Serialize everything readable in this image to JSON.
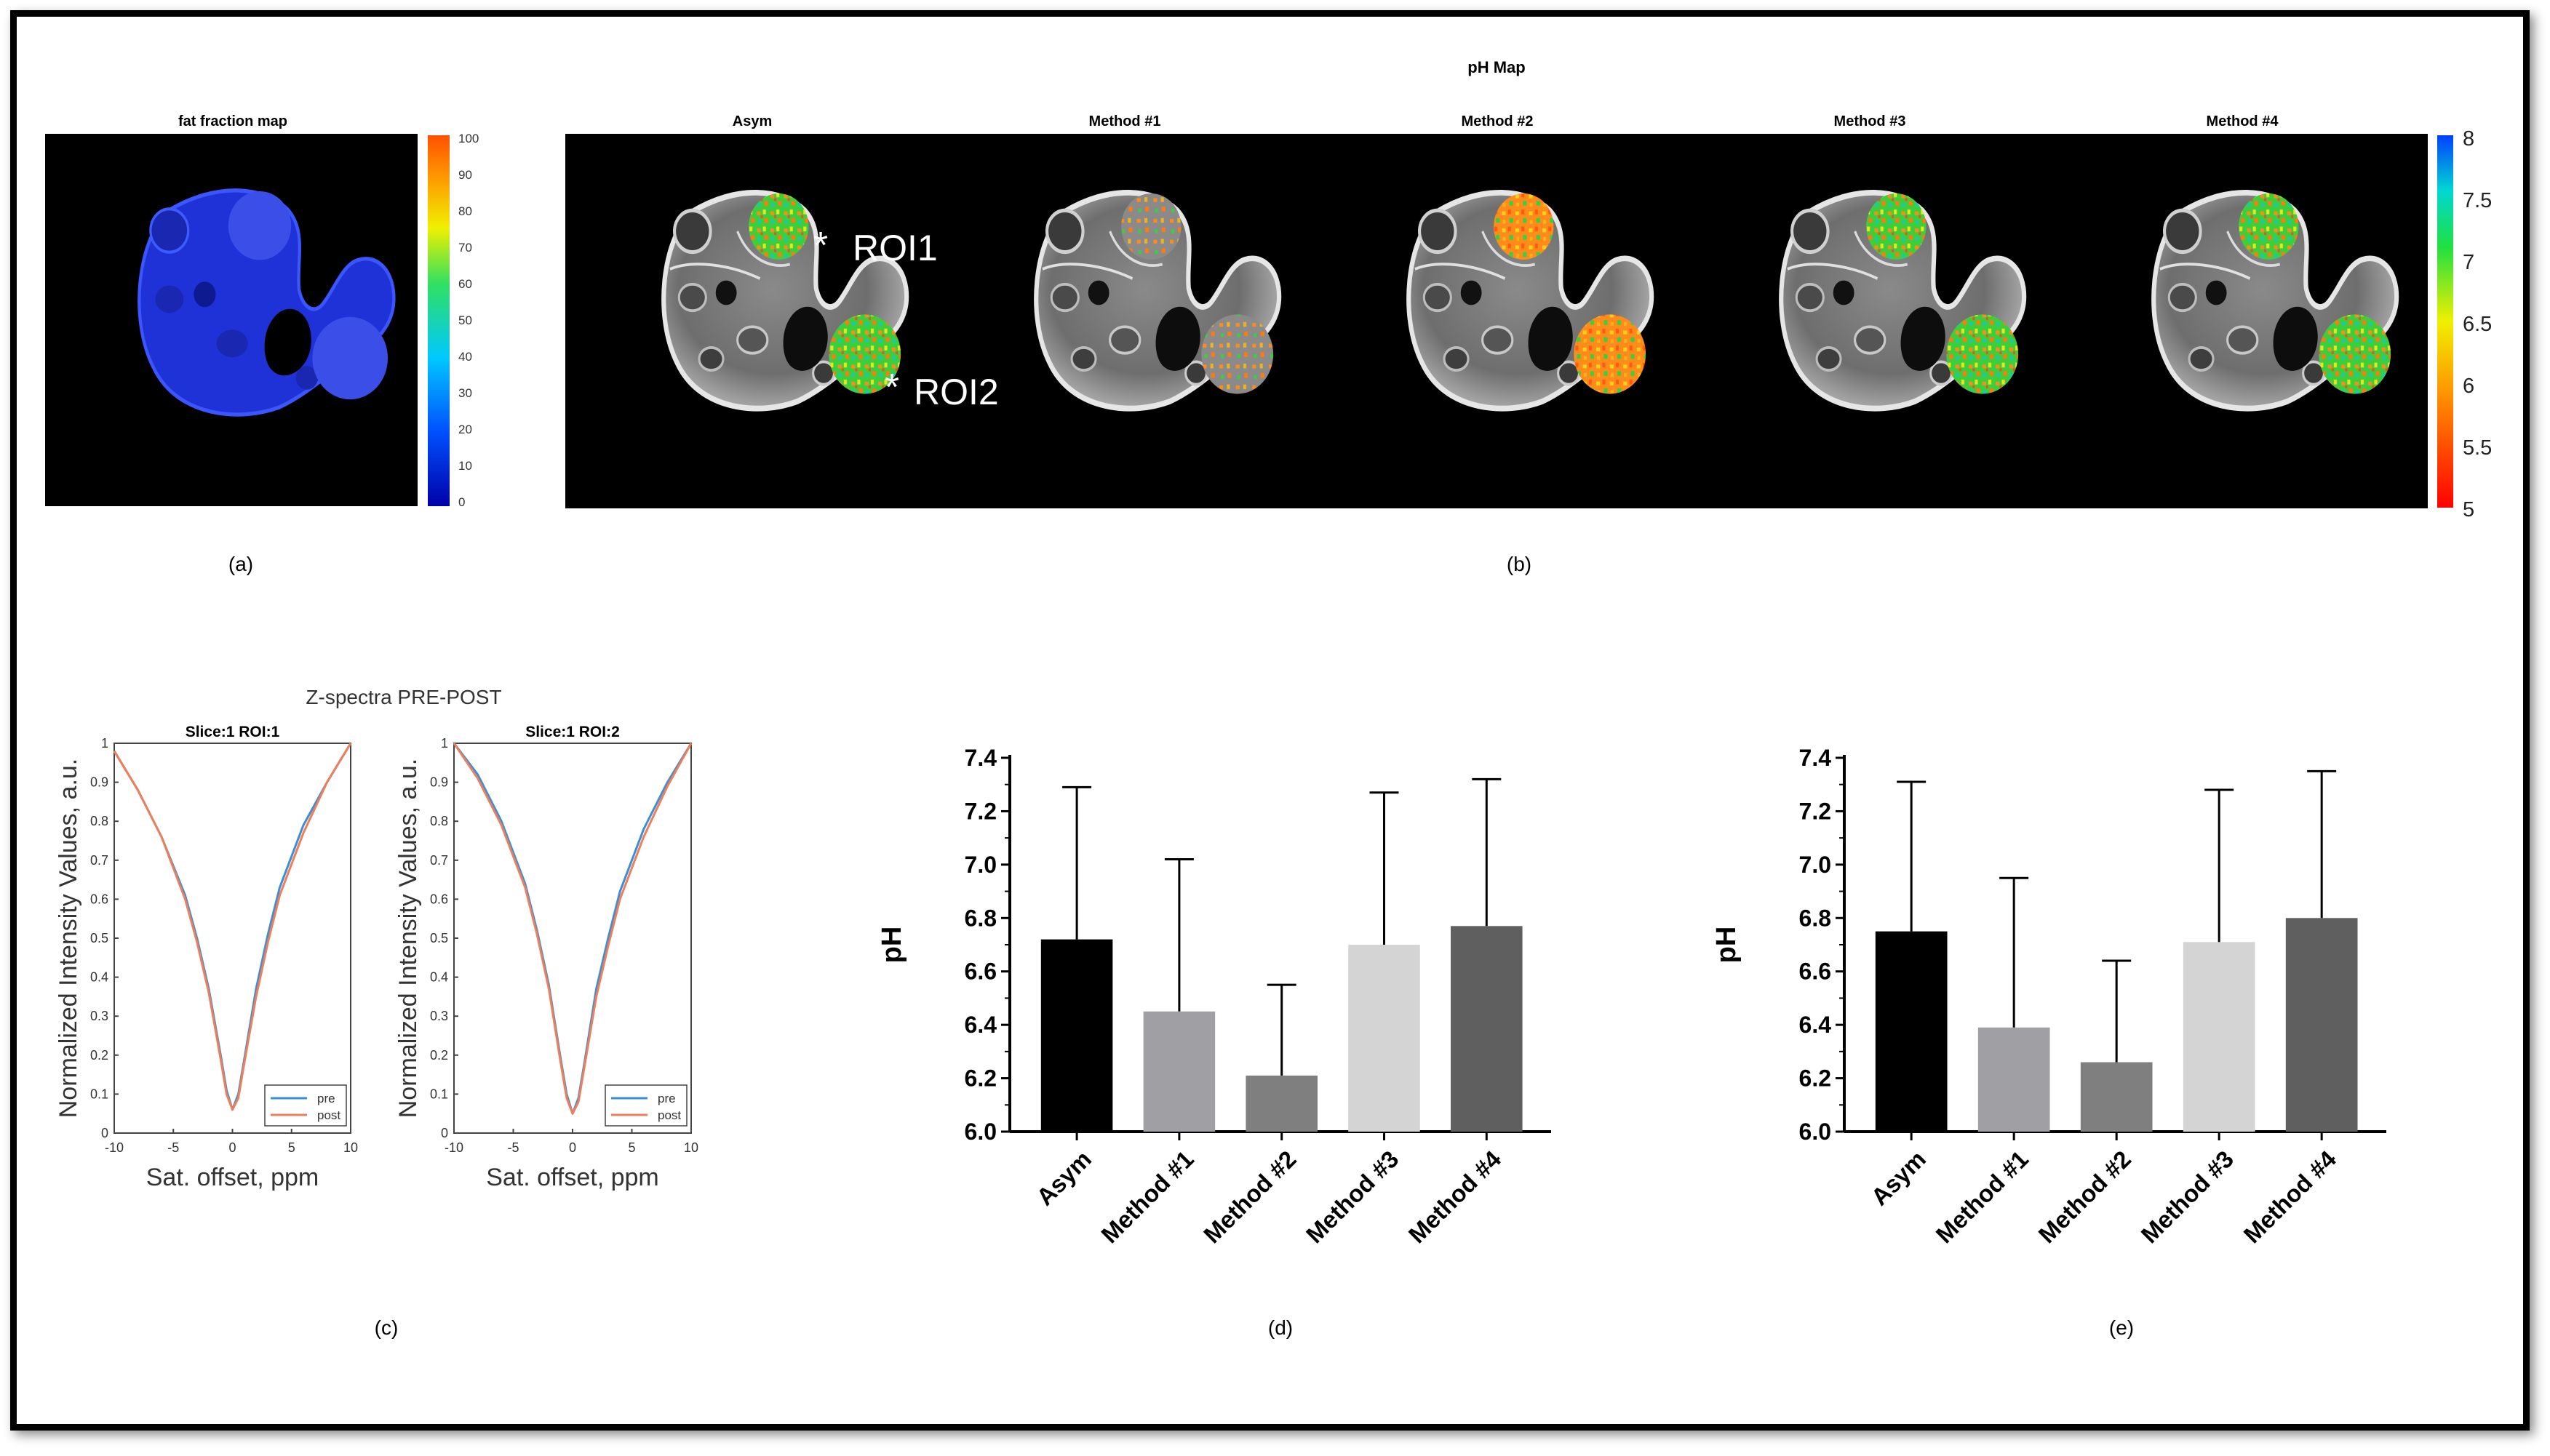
{
  "panel_a": {
    "title": "fat fraction map",
    "caption": "(a)",
    "colorbar_ticks": [
      "100",
      "90",
      "80",
      "70",
      "60",
      "50",
      "40",
      "30",
      "20",
      "10",
      "0"
    ]
  },
  "panel_b": {
    "title": "pH Map",
    "caption": "(b)",
    "image_titles": [
      "Asym",
      "Method #1",
      "Method #2",
      "Method #3",
      "Method #4"
    ],
    "roi_labels": [
      "ROI1",
      "ROI2"
    ],
    "roi_marker": "*",
    "colorbar_ticks": [
      "8",
      "7.5",
      "7",
      "6.5",
      "6",
      "5.5",
      "5"
    ]
  },
  "panel_c": {
    "title": "Z-spectra PRE-POST",
    "caption": "(c)",
    "subplots": [
      {
        "title": "Slice:1 ROI:1"
      },
      {
        "title": "Slice:1 ROI:2"
      }
    ],
    "ylabel": "Normalized Intensity Values, a.u.",
    "xlabel": "Sat. offset, ppm",
    "yticks": [
      "1",
      "0.9",
      "0.8",
      "0.7",
      "0.6",
      "0.5",
      "0.4",
      "0.3",
      "0.2",
      "0.1",
      "0"
    ],
    "xticks": [
      "-10",
      "-5",
      "0",
      "5",
      "10"
    ],
    "legend": [
      "pre",
      "post"
    ],
    "colors": {
      "pre": "#3a8fd6",
      "post": "#ef7e5a"
    }
  },
  "chart_data": [
    {
      "type": "line",
      "title": "Slice:1 ROI:1",
      "xlabel": "Sat. offset, ppm",
      "ylabel": "Normalized Intensity Values, a.u.",
      "xlim": [
        -10,
        10
      ],
      "ylim": [
        0,
        1
      ],
      "x": [
        -10,
        -8,
        -6,
        -4,
        -3,
        -2,
        -1,
        -0.5,
        0,
        0.5,
        1,
        2,
        3,
        4,
        6,
        8,
        10
      ],
      "series": [
        {
          "name": "pre",
          "values": [
            0.98,
            0.88,
            0.76,
            0.61,
            0.5,
            0.37,
            0.2,
            0.11,
            0.06,
            0.1,
            0.19,
            0.37,
            0.51,
            0.63,
            0.79,
            0.9,
            1.0
          ]
        },
        {
          "name": "post",
          "values": [
            0.98,
            0.88,
            0.76,
            0.6,
            0.49,
            0.36,
            0.19,
            0.1,
            0.06,
            0.09,
            0.18,
            0.35,
            0.49,
            0.61,
            0.77,
            0.9,
            1.0
          ]
        }
      ]
    },
    {
      "type": "line",
      "title": "Slice:1 ROI:2",
      "xlabel": "Sat. offset, ppm",
      "ylabel": "Normalized Intensity Values, a.u.",
      "xlim": [
        -10,
        10
      ],
      "ylim": [
        0,
        1
      ],
      "x": [
        -10,
        -8,
        -6,
        -4,
        -3,
        -2,
        -1,
        -0.5,
        0,
        0.5,
        1,
        2,
        3,
        4,
        6,
        8,
        10
      ],
      "series": [
        {
          "name": "pre",
          "values": [
            1.0,
            0.92,
            0.8,
            0.64,
            0.52,
            0.38,
            0.19,
            0.1,
            0.05,
            0.09,
            0.18,
            0.37,
            0.5,
            0.62,
            0.78,
            0.9,
            1.0
          ]
        },
        {
          "name": "post",
          "values": [
            1.0,
            0.91,
            0.79,
            0.63,
            0.51,
            0.37,
            0.18,
            0.09,
            0.05,
            0.08,
            0.17,
            0.35,
            0.48,
            0.6,
            0.76,
            0.89,
            1.0
          ]
        }
      ]
    },
    {
      "type": "bar",
      "caption": "(d)",
      "categories": [
        "Asym",
        "Method #1",
        "Method #2",
        "Method #3",
        "Method #4"
      ],
      "values": [
        6.72,
        6.45,
        6.21,
        6.7,
        6.77
      ],
      "error_upper": [
        7.29,
        7.02,
        6.55,
        7.27,
        7.32
      ],
      "colors": [
        "#000000",
        "#a0a0a4",
        "#7f7f7f",
        "#d4d4d4",
        "#5f5f5f"
      ],
      "ylabel": "pH",
      "ylim": [
        6.0,
        7.4
      ],
      "yticks": [
        "6.0",
        "6.2",
        "6.4",
        "6.6",
        "6.8",
        "7.0",
        "7.2",
        "7.4"
      ]
    },
    {
      "type": "bar",
      "caption": "(e)",
      "categories": [
        "Asym",
        "Method #1",
        "Method #2",
        "Method #3",
        "Method #4"
      ],
      "values": [
        6.75,
        6.39,
        6.26,
        6.71,
        6.8
      ],
      "error_upper": [
        7.31,
        6.95,
        6.64,
        7.28,
        7.35
      ],
      "colors": [
        "#000000",
        "#a0a0a4",
        "#7f7f7f",
        "#d4d4d4",
        "#5f5f5f"
      ],
      "ylabel": "pH",
      "ylim": [
        6.0,
        7.4
      ],
      "yticks": [
        "6.0",
        "6.2",
        "6.4",
        "6.6",
        "6.8",
        "7.0",
        "7.2",
        "7.4"
      ]
    }
  ]
}
